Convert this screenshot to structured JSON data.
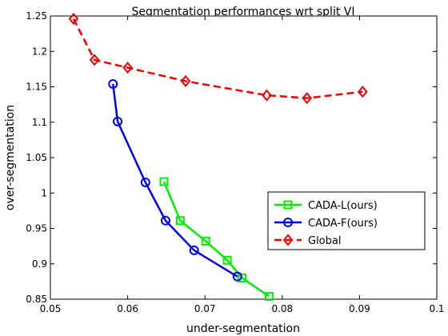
{
  "chart_data": {
    "type": "line",
    "title": "Segmentation performances wrt split VI",
    "xlabel": "under-segmentation",
    "ylabel": "over-segmentation",
    "xlim": [
      0.05,
      0.1
    ],
    "ylim": [
      0.85,
      1.25
    ],
    "xticks": [
      "0.05",
      "0.06",
      "0.07",
      "0.08",
      "0.09",
      "0.1"
    ],
    "yticks": [
      "0.85",
      "0.9",
      "0.95",
      "1",
      "1.05",
      "1.1",
      "1.15",
      "1.2",
      "1.25"
    ],
    "grid": false,
    "legend_position": "center-right",
    "series": [
      {
        "name": "CADA-L(ours)",
        "color": "#00ee00",
        "marker": "square",
        "linestyle": "solid",
        "x": [
          0.0647,
          0.0668,
          0.0701,
          0.0729,
          0.0748,
          0.0783
        ],
        "y": [
          1.016,
          0.961,
          0.932,
          0.905,
          0.88,
          0.854
        ]
      },
      {
        "name": "CADA-F(ours)",
        "color": "#0000ee",
        "marker": "circle",
        "linestyle": "solid",
        "x": [
          0.0581,
          0.0587,
          0.0623,
          0.0649,
          0.0686,
          0.0742
        ],
        "y": [
          1.154,
          1.101,
          1.015,
          0.961,
          0.919,
          0.882
        ]
      },
      {
        "name": "Global",
        "color": "#ee0000",
        "marker": "diamond",
        "linestyle": "dashed",
        "x": [
          0.053,
          0.0557,
          0.06,
          0.0675,
          0.078,
          0.0832,
          0.0904
        ],
        "y": [
          1.246,
          1.188,
          1.177,
          1.158,
          1.138,
          1.134,
          1.143
        ]
      }
    ]
  }
}
